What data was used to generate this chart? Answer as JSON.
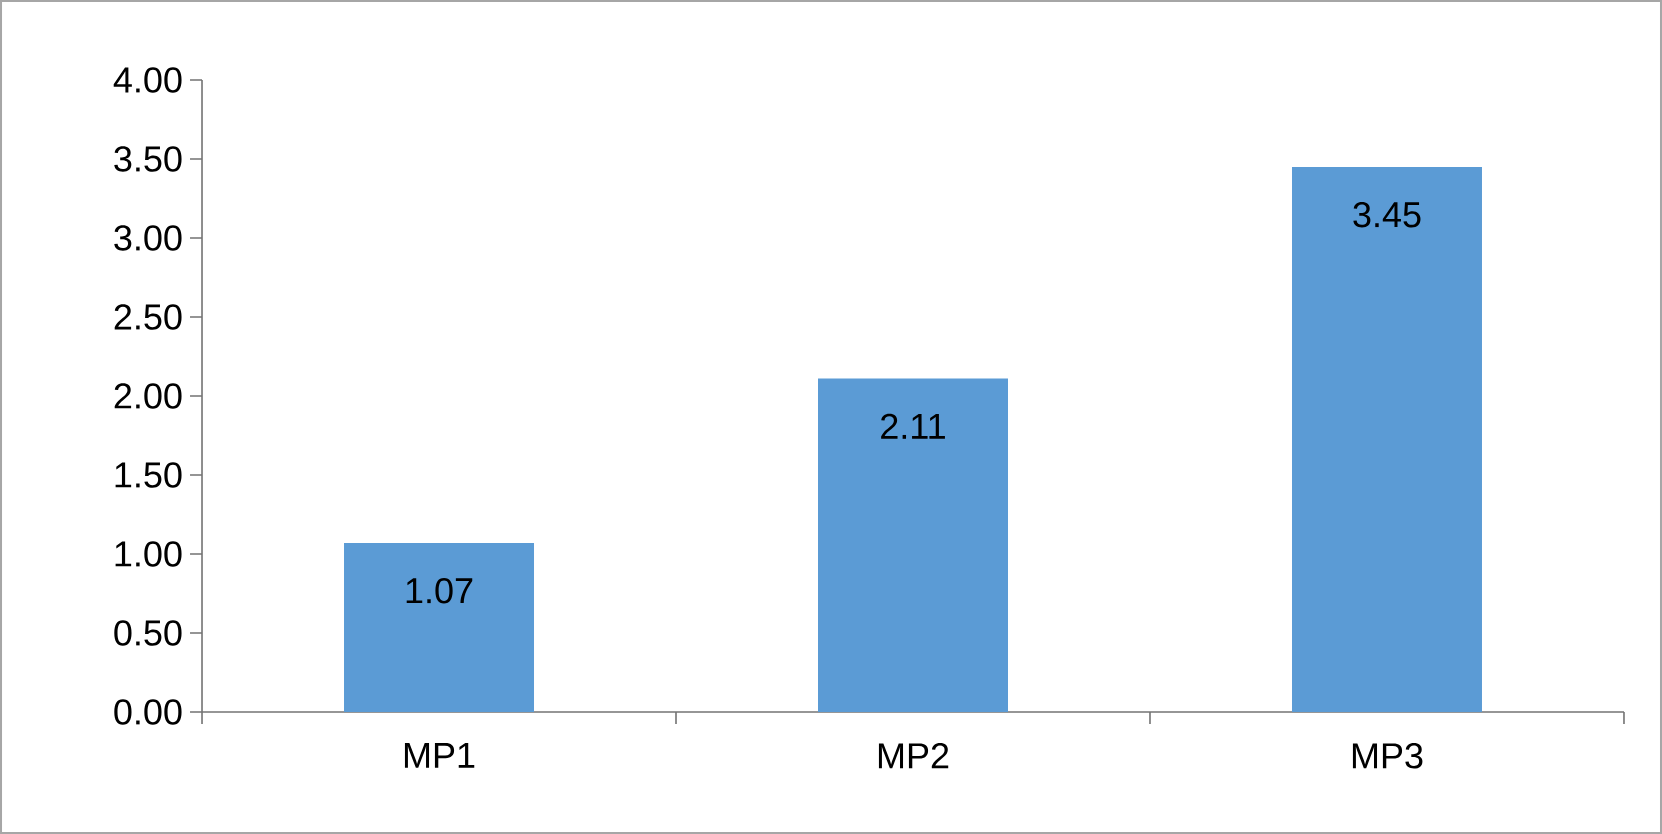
{
  "chart_data": {
    "type": "bar",
    "categories": [
      "MP1",
      "MP2",
      "MP3"
    ],
    "values": [
      1.07,
      2.11,
      3.45
    ],
    "color": "#5b9bd5",
    "data_labels": true,
    "ylim": [
      0,
      4
    ],
    "yticks": [
      {
        "value": 0,
        "label": "0.00"
      },
      {
        "value": 0.5,
        "label": "0.50"
      },
      {
        "value": 1,
        "label": "1.00"
      },
      {
        "value": 1.5,
        "label": "1.50"
      },
      {
        "value": 2,
        "label": "2.00"
      },
      {
        "value": 2.5,
        "label": "2.50"
      },
      {
        "value": 3,
        "label": "3.00"
      },
      {
        "value": 3.5,
        "label": "3.50"
      },
      {
        "value": 4,
        "label": "4.00"
      }
    ]
  }
}
